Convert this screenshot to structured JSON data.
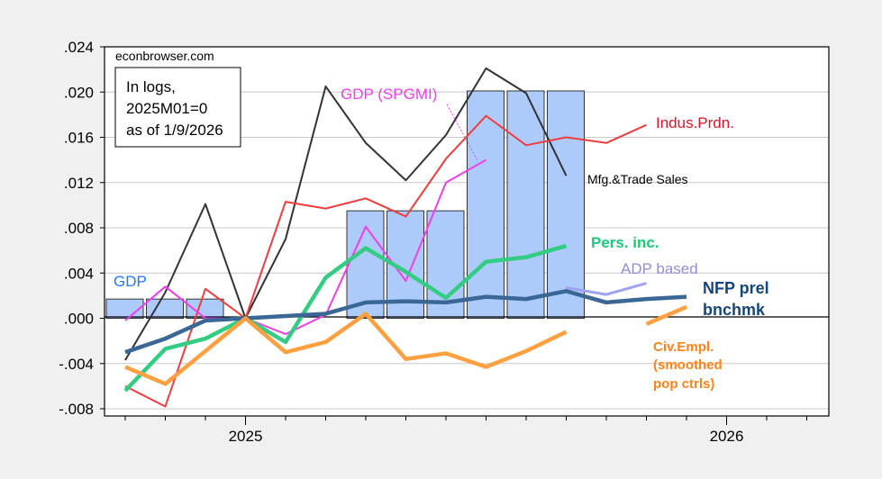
{
  "chart_data": {
    "type": "line",
    "title": "",
    "site": "econbrowser.com",
    "note_lines": [
      "In logs,",
      "2025M01=0",
      "as of 1/9/2026"
    ],
    "xlabel": "",
    "ylabel": "",
    "ylim": [
      -0.008,
      0.024
    ],
    "yticks": [
      -0.008,
      -0.004,
      0.0,
      0.004,
      0.008,
      0.012,
      0.016,
      0.02,
      0.024
    ],
    "ytick_labels": [
      "-.008",
      "-.004",
      ".000",
      ".004",
      ".008",
      ".012",
      ".016",
      ".020",
      ".024"
    ],
    "x": [
      "2024M10",
      "2024M11",
      "2024M12",
      "2025M01",
      "2025M02",
      "2025M03",
      "2025M04",
      "2025M05",
      "2025M06",
      "2025M07",
      "2025M08",
      "2025M09",
      "2025M10",
      "2025M11",
      "2025M12",
      "2026M01",
      "2026M02",
      "2026M03"
    ],
    "xtick_labels": [
      {
        "label": "2025",
        "index": 3
      },
      {
        "label": "2026",
        "index": 15
      }
    ],
    "grid": true,
    "bars": {
      "name": "GDP",
      "color": "#adcbfa",
      "values": [
        0.0017,
        0.0017,
        0.0017,
        null,
        null,
        null,
        0.0095,
        0.0095,
        0.0095,
        0.0201,
        0.0201,
        0.0201,
        null,
        null,
        null,
        null,
        null,
        null
      ]
    },
    "series": [
      {
        "name": "Mfg.&Trade Sales",
        "color": "#333333",
        "width": 2,
        "values": [
          -0.0037,
          0.0023,
          0.0101,
          0.0,
          0.007,
          0.0205,
          0.0155,
          0.0122,
          0.0162,
          0.0221,
          0.0199,
          0.0126,
          null,
          null,
          null,
          null,
          null,
          null
        ]
      },
      {
        "name": "Indus.Prdn.",
        "color": "#f03c3c",
        "width": 2,
        "values": [
          -0.006,
          -0.0078,
          0.0026,
          0.0,
          0.0103,
          0.0097,
          0.0106,
          0.009,
          0.0141,
          0.0179,
          0.0153,
          0.016,
          0.0155,
          0.0171,
          null,
          null,
          null,
          null
        ]
      },
      {
        "name": "GDP (SPGMI)",
        "color": "#f03cf0",
        "width": 2,
        "values": [
          -0.0002,
          0.0028,
          0.0,
          0.0,
          -0.0014,
          0.0003,
          0.0081,
          0.0033,
          0.012,
          0.014,
          null,
          null,
          null,
          null,
          null,
          null,
          null,
          null
        ]
      },
      {
        "name": "Pers. inc.",
        "color": "#32cd82",
        "width": 4.5,
        "values": [
          -0.0064,
          -0.0027,
          -0.0018,
          0.0,
          -0.0021,
          0.0036,
          0.0062,
          0.0041,
          0.0018,
          0.005,
          0.0054,
          0.0064,
          null,
          null,
          null,
          null,
          null,
          null
        ]
      },
      {
        "name": "ADP based",
        "color": "#a0a0f5",
        "width": 3,
        "values": [
          null,
          null,
          null,
          null,
          null,
          null,
          null,
          null,
          null,
          null,
          null,
          0.0027,
          0.0021,
          0.0031,
          null,
          null,
          null,
          null
        ]
      },
      {
        "name": "NFP prel bnchmk",
        "color": "#3a6796",
        "width": 4.5,
        "values": [
          -0.003,
          -0.0018,
          -0.0002,
          0.0,
          0.0002,
          0.0004,
          0.0014,
          0.0015,
          0.0014,
          0.0019,
          0.0017,
          0.0024,
          0.0014,
          0.0017,
          0.0019,
          null,
          null,
          null
        ]
      },
      {
        "name": "Civ.Empl. (smoothed pop ctrls)",
        "color": "#ffa040",
        "width": 4.5,
        "values": [
          -0.0043,
          -0.0058,
          -0.0029,
          0.0,
          -0.003,
          -0.0021,
          0.0004,
          -0.0036,
          -0.0031,
          -0.0043,
          -0.0029,
          -0.0012,
          null,
          -0.0005,
          0.001,
          null,
          null,
          null
        ]
      }
    ],
    "labels": {
      "gdp": "GDP",
      "spgmi": "GDP (SPGMI)",
      "ip": "Indus.Prdn.",
      "mts": "Mfg.&Trade Sales",
      "pi": "Pers. inc.",
      "adp": "ADP based",
      "nfp1": "NFP prel",
      "nfp2": "bnchmk",
      "civ1": "Civ.Empl.",
      "civ2": "(smoothed",
      "civ3": "pop ctrls)"
    },
    "label_colors": {
      "gdp": "#1e78ff",
      "spgmi": "#f03cf0",
      "ip": "#dc1428",
      "mts": "#000000",
      "pi": "#1ec878",
      "adp": "#9090d8",
      "nfp": "#14467e",
      "civ": "#ff8214"
    }
  }
}
